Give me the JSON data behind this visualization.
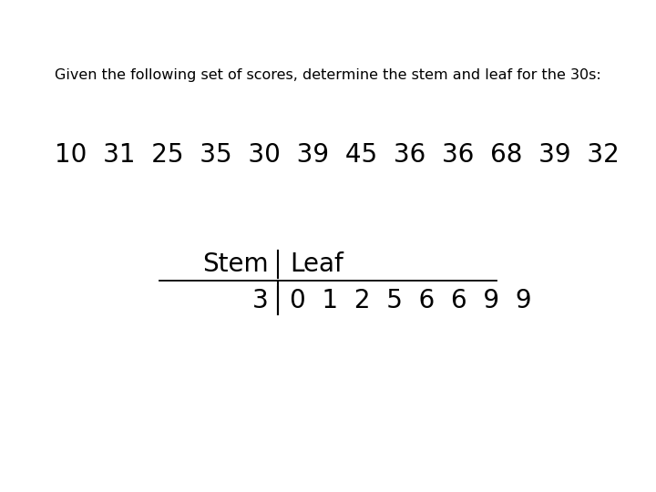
{
  "background_color": "#ffffff",
  "title_text": "Given the following set of scores, determine the stem and leaf for the 30s:",
  "title_fontsize": 11.5,
  "scores_text": "10  31  25  35  30  39  45  36  36  68  39  32",
  "scores_fontsize": 20,
  "stem_label": "Stem",
  "leaf_label": "Leaf",
  "header_fontsize": 20,
  "row_stem": "3",
  "row_leaves": "0  1  2  5  6  6  9  9",
  "row_fontsize": 20
}
